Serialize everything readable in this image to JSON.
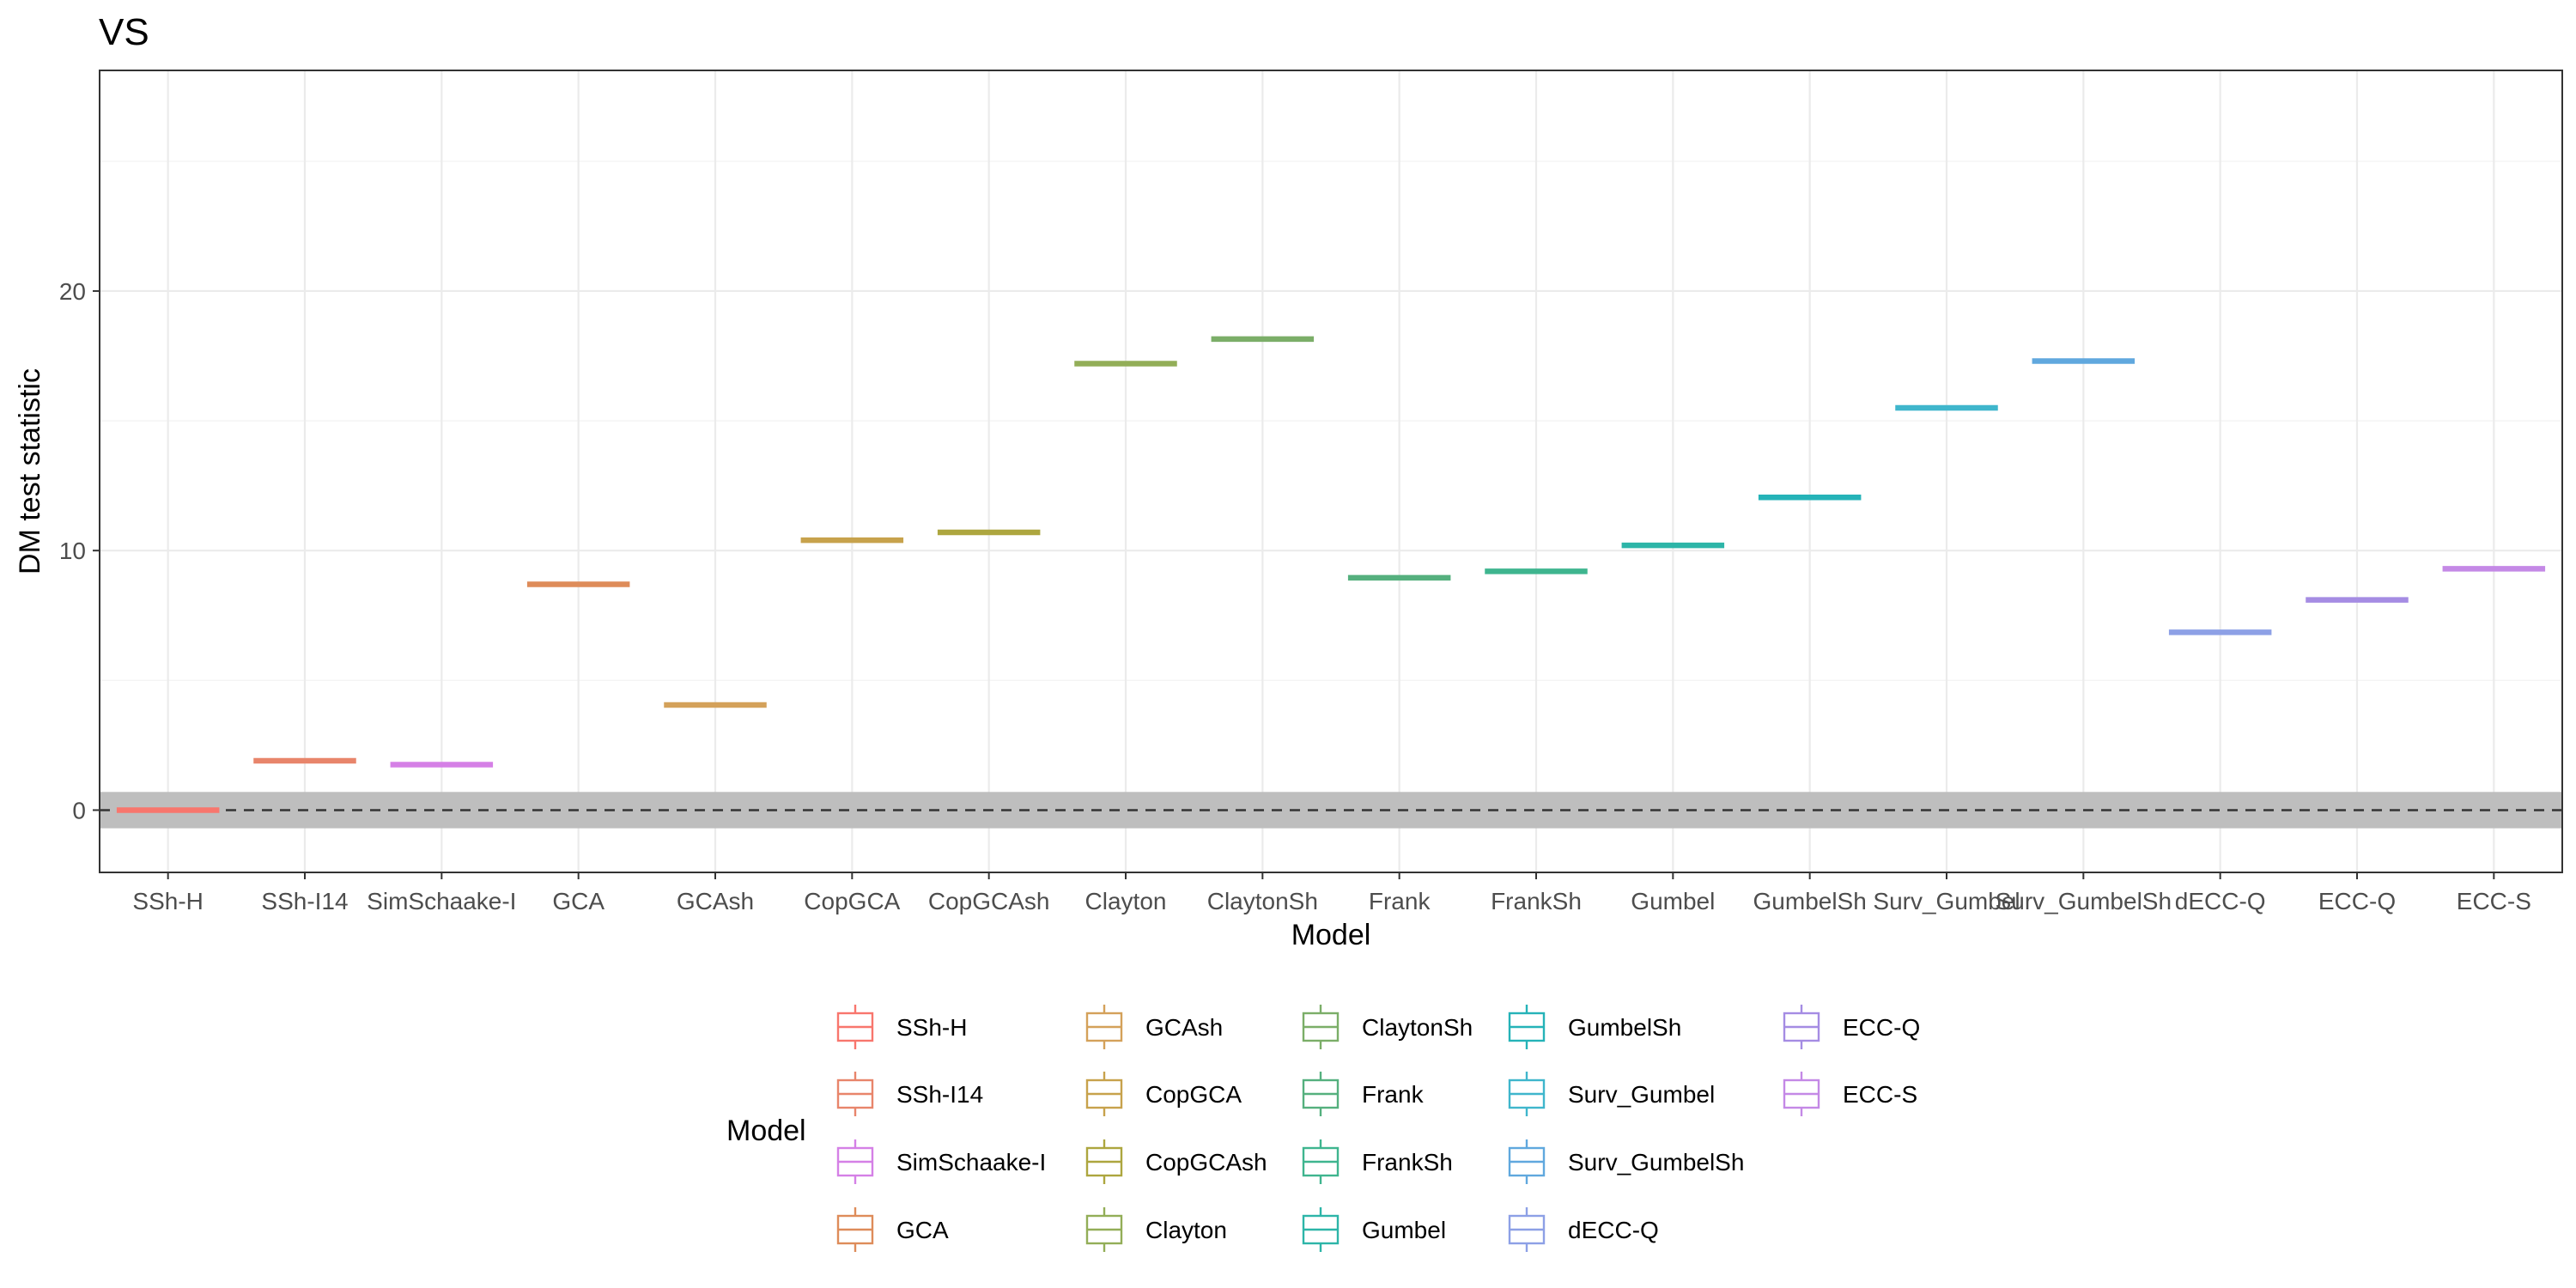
{
  "chart_data": {
    "type": "boxplot",
    "title": "VS",
    "xlabel": "Model",
    "ylabel": "DM test statistic",
    "ylim": [
      -2.4,
      28.5
    ],
    "yticks": [
      0,
      10,
      20
    ],
    "grid": true,
    "reference_line": {
      "y": 0,
      "style": "dashed"
    },
    "reference_band": {
      "ymin": -0.7,
      "ymax": 0.7,
      "color": "#bebebe"
    },
    "legend": {
      "title": "Model",
      "placement": "bottom"
    },
    "categories": [
      "SSh-H",
      "SSh-I14",
      "SimSchaake-I",
      "GCA",
      "GCAsh",
      "CopGCA",
      "CopGCAsh",
      "Clayton",
      "ClaytonSh",
      "Frank",
      "FrankSh",
      "Gumbel",
      "GumbelSh",
      "Surv_Gumbel",
      "Surv_GumbelSh",
      "dECC-Q",
      "ECC-Q",
      "ECC-S"
    ],
    "values": [
      0.0,
      1.9,
      1.75,
      8.7,
      4.05,
      10.4,
      10.7,
      17.2,
      18.15,
      8.95,
      9.2,
      10.2,
      12.05,
      15.5,
      17.3,
      6.85,
      8.1,
      9.3
    ],
    "colors": [
      "#F8766D",
      "#E8856B",
      "#D580E6",
      "#DE8C5A",
      "#D4A15A",
      "#C7A24C",
      "#ADA63F",
      "#93AE58",
      "#7BAE68",
      "#55B07E",
      "#3FB58F",
      "#2DB5A8",
      "#25B3B8",
      "#3FB6CC",
      "#60A8DE",
      "#8DA0E6",
      "#A58CE3",
      "#C489E6"
    ]
  }
}
